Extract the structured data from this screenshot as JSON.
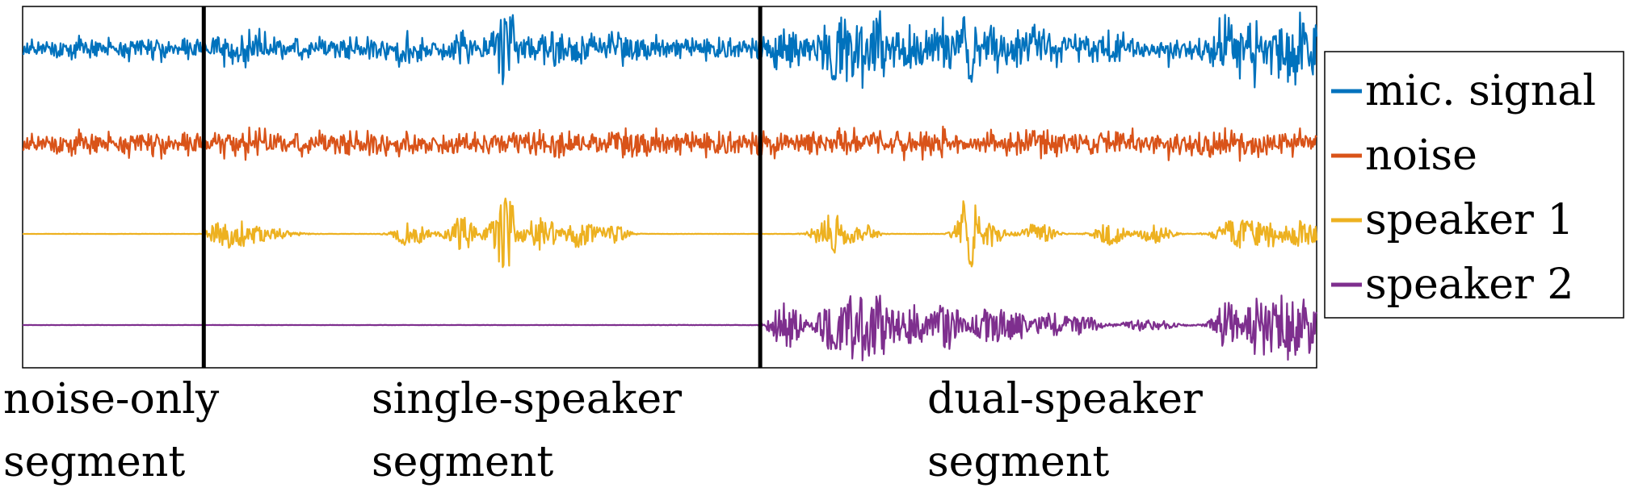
{
  "chart_data": {
    "type": "line",
    "xlabel": "",
    "ylabel": "",
    "grid": false,
    "legend_position": "right",
    "series": [
      {
        "name": "mic. signal",
        "color": "#0072BD"
      },
      {
        "name": "noise",
        "color": "#D95319"
      },
      {
        "name": "speaker 1",
        "color": "#EDB120"
      },
      {
        "name": "speaker 2",
        "color": "#7E2F8E"
      }
    ],
    "segment_boundaries": [
      0.14,
      0.57
    ],
    "segments": [
      {
        "line1": "noise-only",
        "line2": "segment"
      },
      {
        "line1": "single-speaker",
        "line2": "segment"
      },
      {
        "line1": "dual-speaker",
        "line2": "segment"
      }
    ]
  }
}
